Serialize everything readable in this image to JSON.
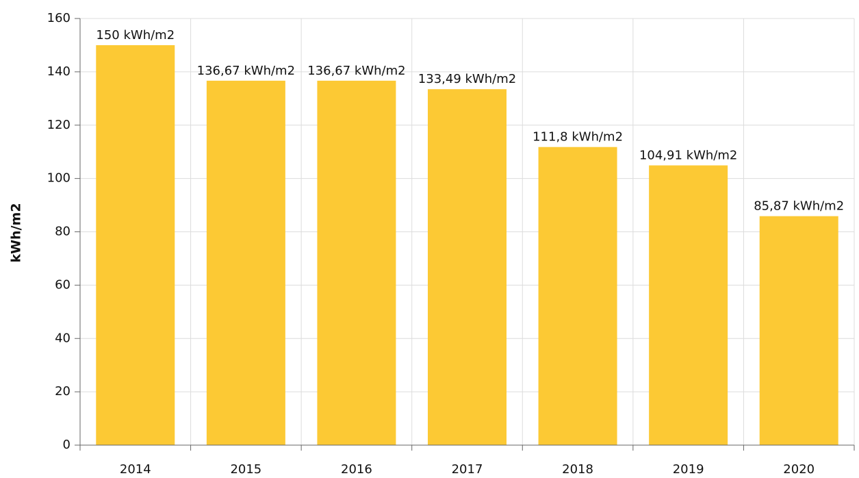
{
  "chart_data": {
    "type": "bar",
    "y_label": "kWh/m2",
    "categories": [
      "2014",
      "2015",
      "2016",
      "2017",
      "2018",
      "2019",
      "2020"
    ],
    "values": [
      150,
      136.67,
      136.67,
      133.49,
      111.8,
      104.91,
      85.87
    ],
    "value_labels": [
      "150 kWh/m2",
      "136,67 kWh/m2",
      "136,67 kWh/m2",
      "133,49 kWh/m2",
      "111,8 kWh/m2",
      "104,91 kWh/m2",
      "85,87 kWh/m2"
    ],
    "color": "#fcc934",
    "ylim": [
      0,
      160
    ],
    "yticks": [
      0,
      20,
      40,
      60,
      80,
      100,
      120,
      140,
      160
    ],
    "grid": true
  }
}
